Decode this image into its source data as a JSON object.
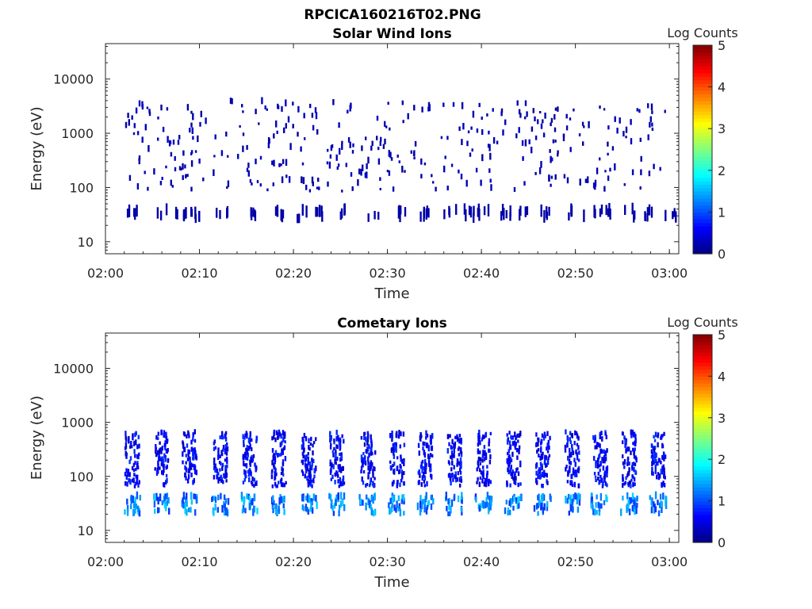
{
  "figure_title": "RPCICA160216T02.PNG",
  "chart_data": [
    {
      "type": "heatmap",
      "title": "Solar Wind Ions",
      "xlabel": "Time",
      "ylabel": "Energy (eV)",
      "x_ticks": [
        "02:00",
        "02:10",
        "02:20",
        "02:30",
        "02:40",
        "02:50",
        "03:00"
      ],
      "xlim": [
        "02:00",
        "03:01"
      ],
      "y_scale": "log",
      "y_ticks": [
        "10",
        "100",
        "1000",
        "10000"
      ],
      "ylim": [
        6,
        45000
      ],
      "colorbar": {
        "label": "Log Counts",
        "ticks": [
          "0",
          "1",
          "2",
          "3",
          "4",
          "5"
        ],
        "range": [
          0,
          5
        ],
        "colormap": "jet"
      },
      "low_band_eV": [
        18,
        35
      ],
      "low_band_level": 0.2,
      "bursts_minutes": [
        2.6,
        5.9,
        7.7,
        9.5,
        12.3,
        15.1,
        18.0,
        20.5,
        22.6,
        25.2,
        28.3,
        31.4,
        34.0,
        36.5,
        38.3,
        40.1,
        42.5,
        44.5,
        46.6,
        49.4,
        51.4,
        53.1,
        55.7,
        57.8,
        59.9
      ],
      "upper_band_eV": [
        200,
        3000
      ]
    },
    {
      "type": "heatmap",
      "title": "Cometary Ions",
      "xlabel": "Time",
      "ylabel": "Energy (eV)",
      "x_ticks": [
        "02:00",
        "02:10",
        "02:20",
        "02:30",
        "02:40",
        "02:50",
        "03:00"
      ],
      "xlim": [
        "02:00",
        "03:01"
      ],
      "y_scale": "log",
      "y_ticks": [
        "10",
        "100",
        "1000",
        "10000"
      ],
      "ylim": [
        6,
        45000
      ],
      "colorbar": {
        "label": "Log Counts",
        "ticks": [
          "0",
          "1",
          "2",
          "3",
          "4",
          "5"
        ],
        "range": [
          0,
          5
        ],
        "colormap": "jet"
      },
      "scan_minutes": [
        2.8,
        5.9,
        8.9,
        12.2,
        15.3,
        18.4,
        21.6,
        24.6,
        27.9,
        31.0,
        34.0,
        37.1,
        40.2,
        43.4,
        46.5,
        49.6,
        52.6,
        55.7,
        58.8
      ],
      "core_band_eV": [
        18,
        45
      ],
      "core_level": 1.3,
      "streak_band_eV": [
        60,
        600
      ],
      "streak_level": 0.6
    }
  ]
}
